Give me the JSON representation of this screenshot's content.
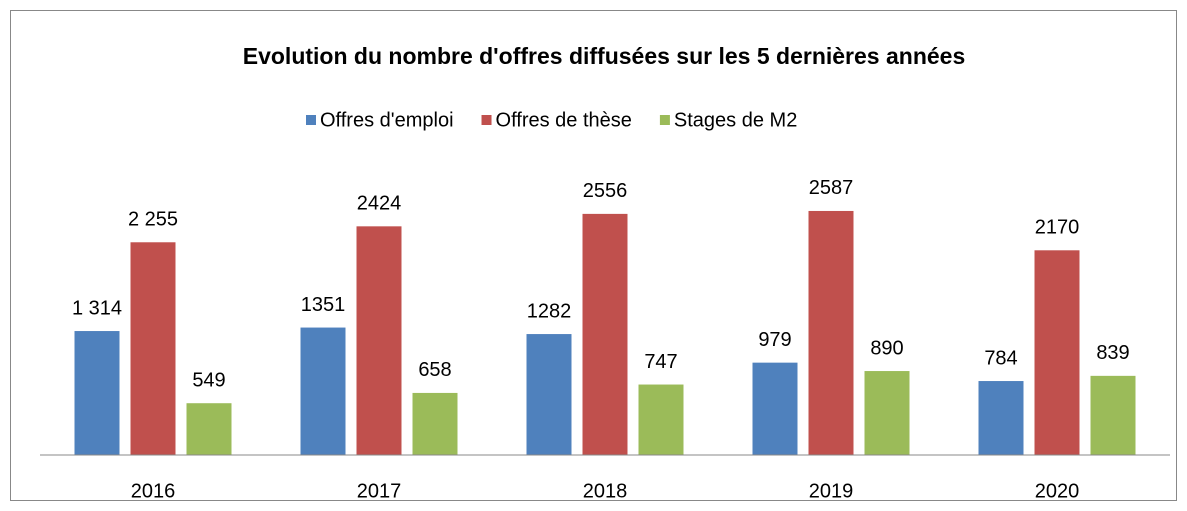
{
  "chart_data": {
    "type": "bar",
    "title": "Evolution du nombre d'offres diffusées sur les 5 dernières années",
    "categories": [
      "2016",
      "2017",
      "2018",
      "2019",
      "2020"
    ],
    "series": [
      {
        "name": "Offres d'emploi",
        "color": "#4f81bd",
        "values": [
          1314,
          1351,
          1282,
          979,
          784
        ],
        "value_labels": [
          "1 314",
          "1351",
          "1282",
          "979",
          "784"
        ]
      },
      {
        "name": "Offres de thèse",
        "color": "#c0504d",
        "values": [
          2255,
          2424,
          2556,
          2587,
          2170
        ],
        "value_labels": [
          "2 255",
          "2424",
          "2556",
          "2587",
          "2170"
        ]
      },
      {
        "name": "Stages de M2",
        "color": "#9bbb59",
        "values": [
          549,
          658,
          747,
          890,
          839
        ],
        "value_labels": [
          "549",
          "658",
          "747",
          "890",
          "839"
        ]
      }
    ],
    "ylim": [
      0,
      3000
    ],
    "legend": "top"
  }
}
